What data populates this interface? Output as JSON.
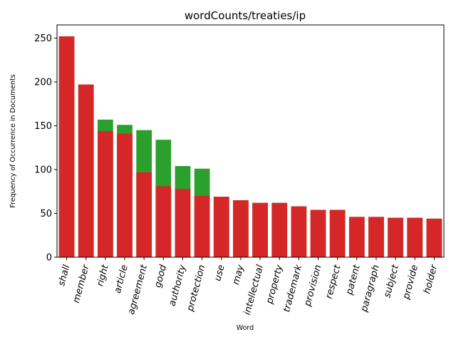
{
  "chart_data": {
    "type": "bar",
    "title": "wordCounts/treaties/ip",
    "xlabel": "Word",
    "ylabel": "Frequency of Occurrence in Documents",
    "ylim": [
      0,
      265
    ],
    "yticks": [
      0,
      50,
      100,
      150,
      200,
      250
    ],
    "categories": [
      "shall",
      "member",
      "right",
      "article",
      "agreement",
      "good",
      "authority",
      "protection",
      "use",
      "may",
      "intellectual",
      "property",
      "trademark",
      "provision",
      "respect",
      "patent",
      "paragraph",
      "subject",
      "provide",
      "holder"
    ],
    "series": [
      {
        "name": "green",
        "color": "#2ca02c",
        "values": [
          252,
          197,
          157,
          151,
          145,
          134,
          104,
          101,
          69,
          65,
          62,
          62,
          58,
          54,
          54,
          46,
          46,
          45,
          45,
          44
        ]
      },
      {
        "name": "red",
        "color": "#d62728",
        "values": [
          252,
          197,
          144,
          141,
          97,
          81,
          78,
          70,
          69,
          65,
          62,
          62,
          58,
          54,
          54,
          46,
          46,
          45,
          45,
          44
        ]
      }
    ]
  }
}
